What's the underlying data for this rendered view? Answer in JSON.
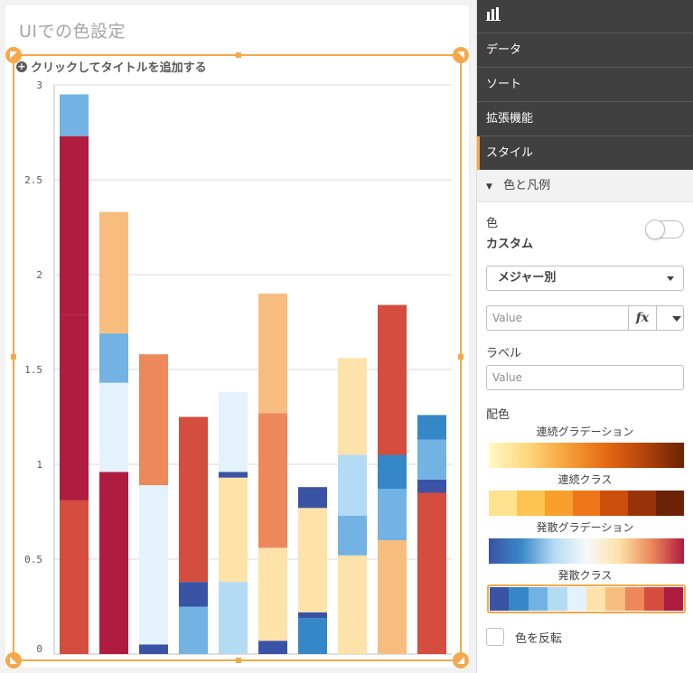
{
  "sheet": {
    "title": "UIでの色設定",
    "add_title_label": "クリックしてタイトルを追加する"
  },
  "chart_data": {
    "type": "bar",
    "stacked": true,
    "title": "",
    "xlabel": "",
    "ylabel": "",
    "ylim": [
      0,
      3
    ],
    "yticks": [
      "0",
      "0.5",
      "1",
      "1.5",
      "2",
      "2.5",
      "3"
    ],
    "grid": true,
    "bars": [
      {
        "segments": [
          {
            "value": 0.81,
            "color": "#d44d3e"
          },
          {
            "value": 0.98,
            "color": "#b01c40"
          },
          {
            "value": 0.94,
            "color": "#b01c40"
          },
          {
            "value": 0.22,
            "color": "#72b3e3"
          }
        ]
      },
      {
        "segments": [
          {
            "value": 0.96,
            "color": "#b01c40"
          },
          {
            "value": 0.47,
            "color": "#e4f2fb"
          },
          {
            "value": 0.26,
            "color": "#72b3e3"
          },
          {
            "value": 0.64,
            "color": "#f7bd7e"
          }
        ]
      },
      {
        "segments": [
          {
            "value": 0.05,
            "color": "#3a53a5"
          },
          {
            "value": 0.84,
            "color": "#e4f2fb"
          },
          {
            "value": 0.69,
            "color": "#ec885a"
          }
        ]
      },
      {
        "segments": [
          {
            "value": 0.25,
            "color": "#72b3e3"
          },
          {
            "value": 0.13,
            "color": "#3a53a5"
          },
          {
            "value": 0.87,
            "color": "#d44d3e"
          }
        ]
      },
      {
        "segments": [
          {
            "value": 0.38,
            "color": "#b3dbf3"
          },
          {
            "value": 0.55,
            "color": "#fde2a9"
          },
          {
            "value": 0.03,
            "color": "#3a53a5"
          },
          {
            "value": 0.42,
            "color": "#e4f2fb"
          }
        ]
      },
      {
        "segments": [
          {
            "value": 0.07,
            "color": "#3a53a5"
          },
          {
            "value": 0.49,
            "color": "#fde2a9"
          },
          {
            "value": 0.71,
            "color": "#ec885a"
          },
          {
            "value": 0.63,
            "color": "#f7bd7e"
          }
        ]
      },
      {
        "segments": [
          {
            "value": 0.19,
            "color": "#3687c8"
          },
          {
            "value": 0.03,
            "color": "#3a53a5"
          },
          {
            "value": 0.55,
            "color": "#fde2a9"
          },
          {
            "value": 0.11,
            "color": "#3a53a5"
          }
        ]
      },
      {
        "segments": [
          {
            "value": 0.52,
            "color": "#fde2a9"
          },
          {
            "value": 0.21,
            "color": "#72b3e3"
          },
          {
            "value": 0.32,
            "color": "#b3dbf3"
          },
          {
            "value": 0.51,
            "color": "#fde2a9"
          }
        ]
      },
      {
        "segments": [
          {
            "value": 0.6,
            "color": "#f7bd7e"
          },
          {
            "value": 0.27,
            "color": "#72b3e3"
          },
          {
            "value": 0.18,
            "color": "#3687c8"
          },
          {
            "value": 0.79,
            "color": "#d44d3e"
          }
        ]
      },
      {
        "segments": [
          {
            "value": 0.85,
            "color": "#d44d3e"
          },
          {
            "value": 0.07,
            "color": "#3a53a5"
          },
          {
            "value": 0.21,
            "color": "#72b3e3"
          },
          {
            "value": 0.13,
            "color": "#3687c8"
          }
        ]
      }
    ]
  },
  "panel": {
    "nav_items": [
      "データ",
      "ソート",
      "拡張機能",
      "スタイル"
    ],
    "active_nav": "スタイル",
    "section_title": "色と凡例",
    "color_label": "色",
    "color_mode": "カスタム",
    "color_toggle_on": false,
    "color_by_dropdown": "メジャー別",
    "expression_placeholder": "Value",
    "fx_label": "fx",
    "label_heading": "ラベル",
    "label_placeholder": "Value",
    "scheme_heading": "配色",
    "schemes": [
      {
        "name": "連続グラデーション",
        "type": "gradient",
        "colors": [
          "#fff8c4",
          "#fdd77e",
          "#f6a13b",
          "#e46a13",
          "#b3430a",
          "#6b2206"
        ]
      },
      {
        "name": "連続クラス",
        "type": "classes",
        "colors": [
          "#fde28f",
          "#fcc451",
          "#f89f2b",
          "#ed7617",
          "#cc4e0b",
          "#9a3209",
          "#6b2206"
        ]
      },
      {
        "name": "発散グラデーション",
        "type": "gradient",
        "colors": [
          "#3a53a5",
          "#3a87c8",
          "#b3dbf3",
          "#f5f9fb",
          "#fde2a9",
          "#ec885a",
          "#b01c40"
        ]
      },
      {
        "name": "発散クラス",
        "type": "classes",
        "colors": [
          "#3a53a5",
          "#3687c8",
          "#72b3e3",
          "#b3dbf3",
          "#e4f2fb",
          "#fde2a9",
          "#f7bd7e",
          "#ec885a",
          "#d44d3e",
          "#b01c40"
        ],
        "selected": true
      }
    ],
    "invert_label": "色を反転",
    "invert_checked": false
  },
  "colors": {
    "accent": "#f5a84b",
    "panel_dark": "#404040"
  }
}
